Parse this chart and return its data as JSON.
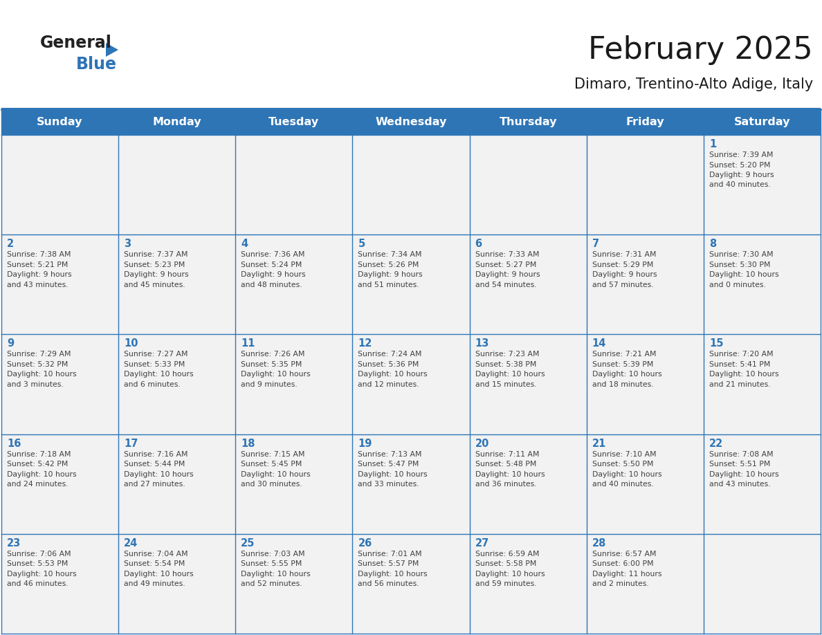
{
  "title": "February 2025",
  "subtitle": "Dimaro, Trentino-Alto Adige, Italy",
  "header_bg": "#2E75B6",
  "header_text": "#FFFFFF",
  "cell_bg": "#F2F2F2",
  "border_color": "#2E75B6",
  "day_names": [
    "Sunday",
    "Monday",
    "Tuesday",
    "Wednesday",
    "Thursday",
    "Friday",
    "Saturday"
  ],
  "title_color": "#1a1a1a",
  "subtitle_color": "#1a1a1a",
  "day_number_color": "#2E75B6",
  "info_color": "#404040",
  "days": [
    {
      "day": 1,
      "col": 6,
      "row": 0,
      "sunrise": "7:39 AM",
      "sunset": "5:20 PM",
      "daylight": "9 hours and 40 minutes."
    },
    {
      "day": 2,
      "col": 0,
      "row": 1,
      "sunrise": "7:38 AM",
      "sunset": "5:21 PM",
      "daylight": "9 hours and 43 minutes."
    },
    {
      "day": 3,
      "col": 1,
      "row": 1,
      "sunrise": "7:37 AM",
      "sunset": "5:23 PM",
      "daylight": "9 hours and 45 minutes."
    },
    {
      "day": 4,
      "col": 2,
      "row": 1,
      "sunrise": "7:36 AM",
      "sunset": "5:24 PM",
      "daylight": "9 hours and 48 minutes."
    },
    {
      "day": 5,
      "col": 3,
      "row": 1,
      "sunrise": "7:34 AM",
      "sunset": "5:26 PM",
      "daylight": "9 hours and 51 minutes."
    },
    {
      "day": 6,
      "col": 4,
      "row": 1,
      "sunrise": "7:33 AM",
      "sunset": "5:27 PM",
      "daylight": "9 hours and 54 minutes."
    },
    {
      "day": 7,
      "col": 5,
      "row": 1,
      "sunrise": "7:31 AM",
      "sunset": "5:29 PM",
      "daylight": "9 hours and 57 minutes."
    },
    {
      "day": 8,
      "col": 6,
      "row": 1,
      "sunrise": "7:30 AM",
      "sunset": "5:30 PM",
      "daylight": "10 hours and 0 minutes."
    },
    {
      "day": 9,
      "col": 0,
      "row": 2,
      "sunrise": "7:29 AM",
      "sunset": "5:32 PM",
      "daylight": "10 hours and 3 minutes."
    },
    {
      "day": 10,
      "col": 1,
      "row": 2,
      "sunrise": "7:27 AM",
      "sunset": "5:33 PM",
      "daylight": "10 hours and 6 minutes."
    },
    {
      "day": 11,
      "col": 2,
      "row": 2,
      "sunrise": "7:26 AM",
      "sunset": "5:35 PM",
      "daylight": "10 hours and 9 minutes."
    },
    {
      "day": 12,
      "col": 3,
      "row": 2,
      "sunrise": "7:24 AM",
      "sunset": "5:36 PM",
      "daylight": "10 hours and 12 minutes."
    },
    {
      "day": 13,
      "col": 4,
      "row": 2,
      "sunrise": "7:23 AM",
      "sunset": "5:38 PM",
      "daylight": "10 hours and 15 minutes."
    },
    {
      "day": 14,
      "col": 5,
      "row": 2,
      "sunrise": "7:21 AM",
      "sunset": "5:39 PM",
      "daylight": "10 hours and 18 minutes."
    },
    {
      "day": 15,
      "col": 6,
      "row": 2,
      "sunrise": "7:20 AM",
      "sunset": "5:41 PM",
      "daylight": "10 hours and 21 minutes."
    },
    {
      "day": 16,
      "col": 0,
      "row": 3,
      "sunrise": "7:18 AM",
      "sunset": "5:42 PM",
      "daylight": "10 hours and 24 minutes."
    },
    {
      "day": 17,
      "col": 1,
      "row": 3,
      "sunrise": "7:16 AM",
      "sunset": "5:44 PM",
      "daylight": "10 hours and 27 minutes."
    },
    {
      "day": 18,
      "col": 2,
      "row": 3,
      "sunrise": "7:15 AM",
      "sunset": "5:45 PM",
      "daylight": "10 hours and 30 minutes."
    },
    {
      "day": 19,
      "col": 3,
      "row": 3,
      "sunrise": "7:13 AM",
      "sunset": "5:47 PM",
      "daylight": "10 hours and 33 minutes."
    },
    {
      "day": 20,
      "col": 4,
      "row": 3,
      "sunrise": "7:11 AM",
      "sunset": "5:48 PM",
      "daylight": "10 hours and 36 minutes."
    },
    {
      "day": 21,
      "col": 5,
      "row": 3,
      "sunrise": "7:10 AM",
      "sunset": "5:50 PM",
      "daylight": "10 hours and 40 minutes."
    },
    {
      "day": 22,
      "col": 6,
      "row": 3,
      "sunrise": "7:08 AM",
      "sunset": "5:51 PM",
      "daylight": "10 hours and 43 minutes."
    },
    {
      "day": 23,
      "col": 0,
      "row": 4,
      "sunrise": "7:06 AM",
      "sunset": "5:53 PM",
      "daylight": "10 hours and 46 minutes."
    },
    {
      "day": 24,
      "col": 1,
      "row": 4,
      "sunrise": "7:04 AM",
      "sunset": "5:54 PM",
      "daylight": "10 hours and 49 minutes."
    },
    {
      "day": 25,
      "col": 2,
      "row": 4,
      "sunrise": "7:03 AM",
      "sunset": "5:55 PM",
      "daylight": "10 hours and 52 minutes."
    },
    {
      "day": 26,
      "col": 3,
      "row": 4,
      "sunrise": "7:01 AM",
      "sunset": "5:57 PM",
      "daylight": "10 hours and 56 minutes."
    },
    {
      "day": 27,
      "col": 4,
      "row": 4,
      "sunrise": "6:59 AM",
      "sunset": "5:58 PM",
      "daylight": "10 hours and 59 minutes."
    },
    {
      "day": 28,
      "col": 5,
      "row": 4,
      "sunrise": "6:57 AM",
      "sunset": "6:00 PM",
      "daylight": "11 hours and 2 minutes."
    }
  ]
}
